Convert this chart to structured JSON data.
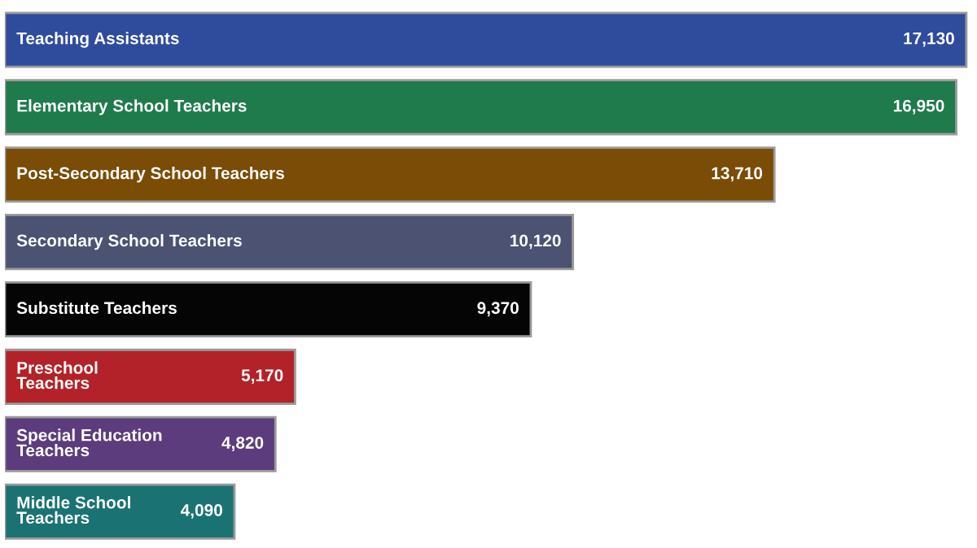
{
  "chart_data": {
    "type": "bar",
    "orientation": "horizontal",
    "categories": [
      "Teaching Assistants",
      "Elementary School Teachers",
      "Post-Secondary School Teachers",
      "Secondary School Teachers",
      "Substitute Teachers",
      "Preschool\nTeachers",
      "Special Education\nTeachers",
      "Middle School\nTeachers"
    ],
    "values": [
      17130,
      16950,
      13710,
      10120,
      9370,
      5170,
      4820,
      4090
    ],
    "colors": [
      "#2f4b9c",
      "#1f7a4c",
      "#7a4c06",
      "#4b5272",
      "#050505",
      "#b22228",
      "#5c3c7c",
      "#1b7272"
    ],
    "value_labels": [
      "17,130",
      "16,950",
      "13,710",
      "10,120",
      "9,370",
      "5,170",
      "4,820",
      "4,090"
    ]
  }
}
